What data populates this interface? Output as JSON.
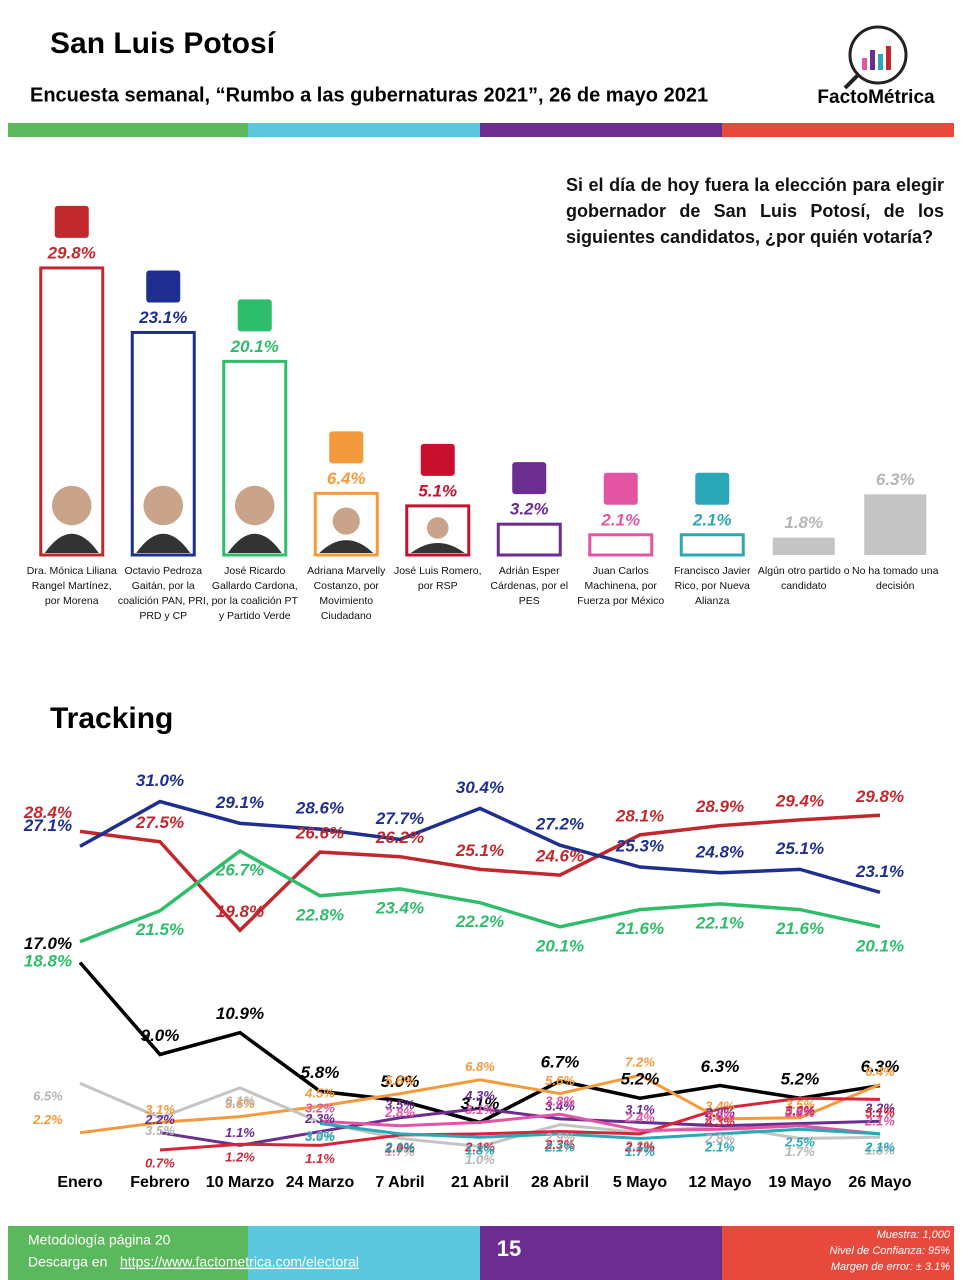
{
  "header": {
    "title": "San Luis Potosí",
    "subtitle": "Encuesta semanal, “Rumbo a las gubernaturas 2021”, 26 de mayo 2021",
    "brand": "FactoMétrica"
  },
  "chart_data": [
    {
      "type": "bar",
      "question": "Si el día de hoy fuera la elección para elegir gobernador de San Luis Potosí, de los siguientes candidatos, ¿por quién votaría?",
      "categories": [
        "Dra. Mónica Liliana Rangel Martínez, por Morena",
        "Octavio Pedroza Gaitán, por la coalición PAN, PRI, PRD y CP",
        "José Ricardo Gallardo Cardona, por la coalición PT y Partido Verde",
        "Adriana Marvelly Costanzo, por Movimiento Ciudadano",
        "José Luis Romero, por RSP",
        "Adrián Esper Cárdenas, por el PES",
        "Juan Carlos Machinena, por Fuerza por México",
        "Francisco Javier Rico, por Nueva Alianza",
        "Algún otro partido o candidato",
        "No ha tomado una decisión"
      ],
      "values": [
        29.8,
        23.1,
        20.1,
        6.4,
        5.1,
        3.2,
        2.1,
        2.1,
        1.8,
        6.3
      ],
      "value_labels": [
        "29.8%",
        "23.1%",
        "20.1%",
        "6.4%",
        "5.1%",
        "3.2%",
        "2.1%",
        "2.1%",
        "1.8%",
        "6.3%"
      ],
      "colors": [
        "#c0282d",
        "#1f2f8f",
        "#2ebd6a",
        "#f39a3c",
        "#c8102e",
        "#6b2d8f",
        "#e255a3",
        "#2aa8b8",
        "#c4c4c4",
        "#c4c4c4"
      ],
      "bar_style": [
        "outline",
        "outline",
        "outline",
        "outline",
        "outline",
        "outline",
        "outline",
        "outline",
        "solid",
        "solid"
      ],
      "ylim": [
        0,
        30
      ]
    },
    {
      "type": "line",
      "title": "Tracking",
      "categories": [
        "Enero",
        "Febrero",
        "10 Marzo",
        "24 Marzo",
        "7 Abril",
        "21 Abril",
        "28 Abril",
        "5 Mayo",
        "12 Mayo",
        "19 Mayo",
        "26 Mayo"
      ],
      "ylim": [
        0,
        32
      ],
      "series": [
        {
          "color": "#c0282d",
          "values": [
            28.4,
            27.5,
            19.8,
            26.6,
            26.2,
            25.1,
            24.6,
            28.1,
            28.9,
            29.4,
            29.8
          ],
          "value_labels": [
            "28.4%",
            "27.5%",
            "19.8%",
            "26.6%",
            "26.2%",
            "25.1%",
            "24.6%",
            "28.1%",
            "28.9%",
            "29.4%",
            "29.8%"
          ]
        },
        {
          "color": "#1f2f8f",
          "values": [
            27.1,
            31.0,
            29.1,
            28.6,
            27.7,
            30.4,
            27.2,
            25.3,
            24.8,
            25.1,
            23.1
          ],
          "value_labels": [
            "27.1%",
            "31.0%",
            "29.1%",
            "28.6%",
            "27.7%",
            "30.4%",
            "27.2%",
            "25.3%",
            "24.8%",
            "25.1%",
            "23.1%"
          ]
        },
        {
          "color": "#2ebd6a",
          "values": [
            18.8,
            21.5,
            26.7,
            22.8,
            23.4,
            22.2,
            20.1,
            21.6,
            22.1,
            21.6,
            20.1
          ],
          "value_labels": [
            "18.8%",
            "21.5%",
            "26.7%",
            "22.8%",
            "23.4%",
            "22.2%",
            "20.1%",
            "21.6%",
            "22.1%",
            "21.6%",
            "20.1%"
          ]
        },
        {
          "color": "#000000",
          "values": [
            17.0,
            9.0,
            10.9,
            5.8,
            5.0,
            3.1,
            6.7,
            5.2,
            6.3,
            5.2,
            6.3
          ],
          "value_labels": [
            "17.0%",
            "9.0%",
            "10.9%",
            "5.8%",
            "5.0%",
            "3.1%",
            "6.7%",
            "5.2%",
            "6.3%",
            "5.2%",
            "6.3%"
          ]
        },
        {
          "color": "#f39a3c",
          "values": [
            2.2,
            3.1,
            3.6,
            4.5,
            5.6,
            6.8,
            5.6,
            7.2,
            3.4,
            3.5,
            6.4
          ],
          "value_labels": [
            "2.2%",
            "3.1%",
            "3.6%",
            "4.5%",
            "5.6%",
            "6.8%",
            "5.6%",
            "7.2%",
            "3.4%",
            "3.5%",
            "6.4%"
          ]
        },
        {
          "color": "#c4c4c4",
          "values": [
            6.5,
            3.5,
            6.1,
            3.1,
            1.7,
            1.0,
            2.9,
            2.2,
            2.8,
            1.7,
            1.8
          ],
          "value_labels": [
            "6.5%",
            "3.5%",
            "6.1%",
            "3.1%",
            "1.7%",
            "1.0%",
            "2.9%",
            "2.2%",
            "2.8%",
            "1.7%",
            "1.8%"
          ]
        },
        {
          "color": "#6b2d8f",
          "values": [
            null,
            2.2,
            1.1,
            2.3,
            3.5,
            4.3,
            3.4,
            3.1,
            2.8,
            3.0,
            3.2
          ],
          "value_labels": [
            null,
            "2.2%",
            "1.1%",
            "2.3%",
            "3.5%",
            "4.3%",
            "3.4%",
            "3.1%",
            "2.8%",
            "3.0%",
            "3.2%"
          ]
        },
        {
          "color": "#d6243a",
          "values": [
            null,
            0.7,
            1.2,
            1.1,
            2.0,
            2.1,
            2.3,
            2.1,
            4.3,
            5.2,
            5.1
          ],
          "value_labels": [
            null,
            "0.7%",
            "1.2%",
            "1.1%",
            "2.0%",
            "2.1%",
            "2.3%",
            "2.1%",
            "4.3%",
            "5.2%",
            "5.1%"
          ]
        },
        {
          "color": "#e255a3",
          "values": [
            null,
            null,
            null,
            3.2,
            2.8,
            3.1,
            3.8,
            2.4,
            2.5,
            2.8,
            2.1
          ],
          "value_labels": [
            null,
            null,
            null,
            "3.2%",
            "2.8%",
            "3.1%",
            "3.8%",
            "2.4%",
            "2.5%",
            "2.8%",
            "2.1%"
          ]
        },
        {
          "color": "#2aa8b8",
          "values": [
            null,
            null,
            null,
            3.0,
            2.1,
            1.8,
            2.1,
            1.7,
            2.1,
            2.5,
            2.1
          ],
          "value_labels": [
            null,
            null,
            null,
            "3.0%",
            "2.1%",
            "1.8%",
            "2.1%",
            "1.7%",
            "2.1%",
            "2.5%",
            "2.1%"
          ]
        }
      ]
    }
  ],
  "footer": {
    "method": "Metodología página 20",
    "download_prefix": "Descarga en",
    "url": "https://www.factometrica.com/electoral",
    "page": "15",
    "sample": "Muestra: 1,000",
    "confidence": "Nivel de Confianza: 95%",
    "error": "Margen de error: ± 3.1%"
  }
}
